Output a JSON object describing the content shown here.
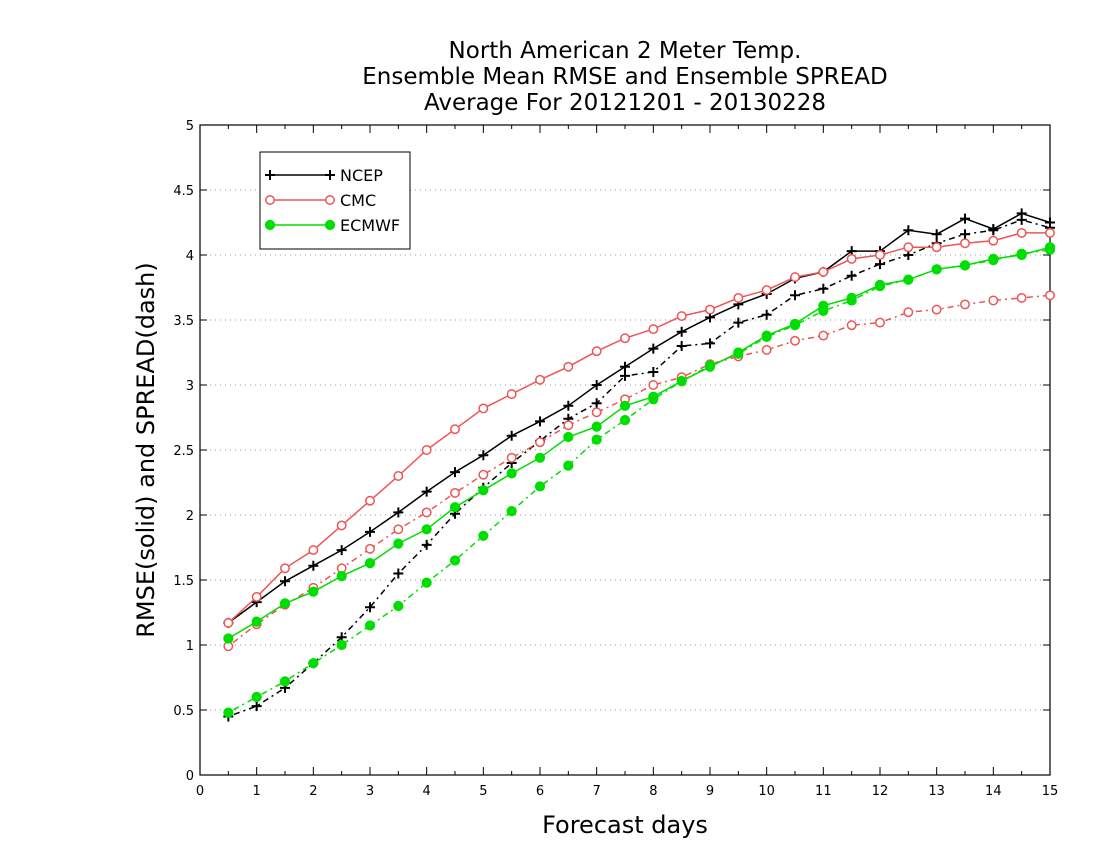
{
  "chart_data": {
    "type": "line",
    "title": [
      "North American 2 Meter Temp.",
      "Ensemble Mean RMSE and Ensemble SPREAD",
      "Average For 20121201 - 20130228"
    ],
    "xlabel": "Forecast days",
    "ylabel": "RMSE(solid) and SPREAD(dash)",
    "xlim": [
      0,
      15
    ],
    "ylim": [
      0,
      5
    ],
    "xticks": [
      "0",
      "1",
      "2",
      "3",
      "4",
      "5",
      "6",
      "7",
      "8",
      "9",
      "10",
      "11",
      "12",
      "13",
      "14",
      "15"
    ],
    "yticks": [
      "0",
      "0.5",
      "1",
      "1.5",
      "2",
      "2.5",
      "3",
      "3.5",
      "4",
      "4.5",
      "5"
    ],
    "grid": "horizontal dotted",
    "legend_position": "top-left",
    "x": [
      0.5,
      1,
      1.5,
      2,
      2.5,
      3,
      3.5,
      4,
      4.5,
      5,
      5.5,
      6,
      6.5,
      7,
      7.5,
      8,
      8.5,
      9,
      9.5,
      10,
      10.5,
      11,
      11.5,
      12,
      12.5,
      13,
      13.5,
      14,
      14.5,
      15
    ],
    "series": [
      {
        "name": "NCEP",
        "color": "#000000",
        "marker": "plus",
        "rmse": [
          1.17,
          1.33,
          1.49,
          1.61,
          1.73,
          1.87,
          2.02,
          2.18,
          2.33,
          2.46,
          2.61,
          2.72,
          2.84,
          3.0,
          3.14,
          3.28,
          3.41,
          3.52,
          3.62,
          3.7,
          3.82,
          3.87,
          4.03,
          4.03,
          4.19,
          4.16,
          4.28,
          4.2,
          4.32,
          4.25
        ],
        "spread": [
          0.45,
          0.53,
          0.67,
          0.86,
          1.06,
          1.29,
          1.55,
          1.77,
          2.01,
          2.21,
          2.4,
          2.57,
          2.74,
          2.86,
          3.07,
          3.1,
          3.3,
          3.32,
          3.48,
          3.54,
          3.69,
          3.74,
          3.84,
          3.93,
          4.0,
          4.09,
          4.16,
          4.19,
          4.27,
          4.21
        ]
      },
      {
        "name": "CMC",
        "color": "#ee5555",
        "marker": "open-circle",
        "rmse": [
          1.17,
          1.37,
          1.59,
          1.73,
          1.92,
          2.11,
          2.3,
          2.5,
          2.66,
          2.82,
          2.93,
          3.04,
          3.14,
          3.26,
          3.36,
          3.43,
          3.53,
          3.58,
          3.67,
          3.73,
          3.83,
          3.87,
          3.97,
          4.0,
          4.06,
          4.06,
          4.09,
          4.11,
          4.17,
          4.17
        ],
        "spread": [
          0.99,
          1.16,
          1.31,
          1.44,
          1.59,
          1.74,
          1.89,
          2.02,
          2.17,
          2.31,
          2.44,
          2.56,
          2.69,
          2.79,
          2.89,
          3.0,
          3.06,
          3.16,
          3.22,
          3.27,
          3.34,
          3.38,
          3.46,
          3.48,
          3.56,
          3.58,
          3.62,
          3.65,
          3.67,
          3.69
        ]
      },
      {
        "name": "ECMWF",
        "color": "#00dd00",
        "marker": "filled-circle",
        "rmse": [
          1.05,
          1.18,
          1.32,
          1.41,
          1.53,
          1.63,
          1.78,
          1.89,
          2.06,
          2.19,
          2.32,
          2.44,
          2.6,
          2.68,
          2.84,
          2.91,
          3.03,
          3.14,
          3.25,
          3.38,
          3.47,
          3.61,
          3.67,
          3.77,
          3.81,
          3.89,
          3.92,
          3.97,
          4.0,
          4.06
        ],
        "spread": [
          0.48,
          0.6,
          0.72,
          0.86,
          1.0,
          1.15,
          1.3,
          1.48,
          1.65,
          1.84,
          2.03,
          2.22,
          2.38,
          2.58,
          2.73,
          2.89,
          3.03,
          3.15,
          3.24,
          3.37,
          3.46,
          3.57,
          3.65,
          3.76,
          3.81,
          3.89,
          3.92,
          3.96,
          4.01,
          4.04
        ]
      }
    ]
  }
}
